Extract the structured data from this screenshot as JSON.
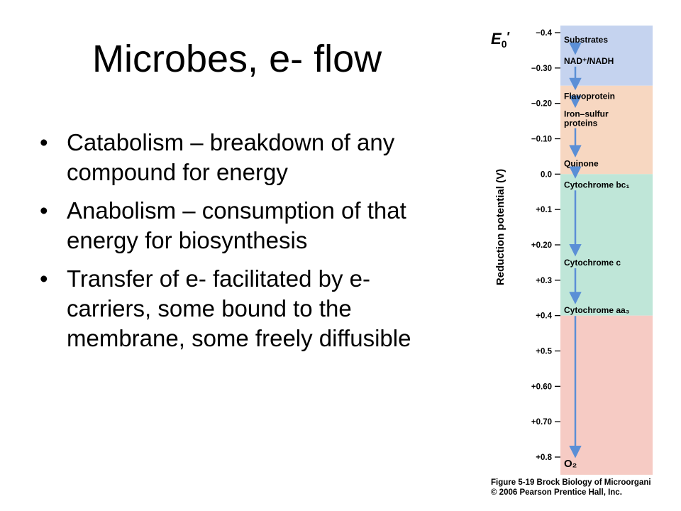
{
  "slide": {
    "title": "Microbes, e- flow",
    "bullets": [
      "Catabolism – breakdown of any compound for energy",
      "Anabolism – consumption of that energy for biosynthesis",
      "Transfer of e- facilitated by e- carriers, some bound to the membrane, some freely diffusible"
    ]
  },
  "figure": {
    "e0_symbol": "E",
    "e0_subscript": "0",
    "e0_prime": "′",
    "axis_label": "Reduction potential  (V)",
    "ticks": [
      {
        "label": "−0.4",
        "value": -0.4
      },
      {
        "label": "−0.30",
        "value": -0.3
      },
      {
        "label": "−0.20",
        "value": -0.2
      },
      {
        "label": "−0.10",
        "value": -0.1
      },
      {
        "label": "0.0",
        "value": 0.0
      },
      {
        "label": "+0.1",
        "value": 0.1
      },
      {
        "label": "+0.20",
        "value": 0.2
      },
      {
        "label": "+0.3",
        "value": 0.3
      },
      {
        "label": "+0.4",
        "value": 0.4
      },
      {
        "label": "+0.5",
        "value": 0.5
      },
      {
        "label": "+0.60",
        "value": 0.6
      },
      {
        "label": "+0.70",
        "value": 0.7
      },
      {
        "label": "+0.8",
        "value": 0.8
      }
    ],
    "bands": [
      {
        "from": -0.43,
        "to": -0.25,
        "color": "#c5d3ef"
      },
      {
        "from": -0.25,
        "to": 0.0,
        "color": "#f7d7c1"
      },
      {
        "from": 0.0,
        "to": 0.4,
        "color": "#bfe6d8"
      },
      {
        "from": 0.4,
        "to": 0.85,
        "color": "#f6cbc4"
      }
    ],
    "carriers": [
      {
        "lines": [
          "Substrates"
        ],
        "value": -0.38
      },
      {
        "lines": [
          "NAD⁺/NADH"
        ],
        "value": -0.32
      },
      {
        "lines": [
          "Flavoprotein"
        ],
        "value": -0.22
      },
      {
        "lines": [
          "Iron–sulfur",
          "proteins"
        ],
        "value": -0.17
      },
      {
        "lines": [
          "Quinone"
        ],
        "value": -0.03
      },
      {
        "lines": [
          "Cytochrome bc₁"
        ],
        "value": 0.03
      },
      {
        "lines": [
          "Cytochrome c"
        ],
        "value": 0.25
      },
      {
        "lines": [
          "Cytochrome aa₃"
        ],
        "value": 0.385
      },
      {
        "lines": [
          "O₂"
        ],
        "value": 0.82
      }
    ],
    "arrow_color": "#5b8fd6",
    "caption_line1": "Figure 5-19  Brock Biology of Microorgani",
    "caption_line2": "© 2006 Pearson Prentice Hall, Inc."
  }
}
